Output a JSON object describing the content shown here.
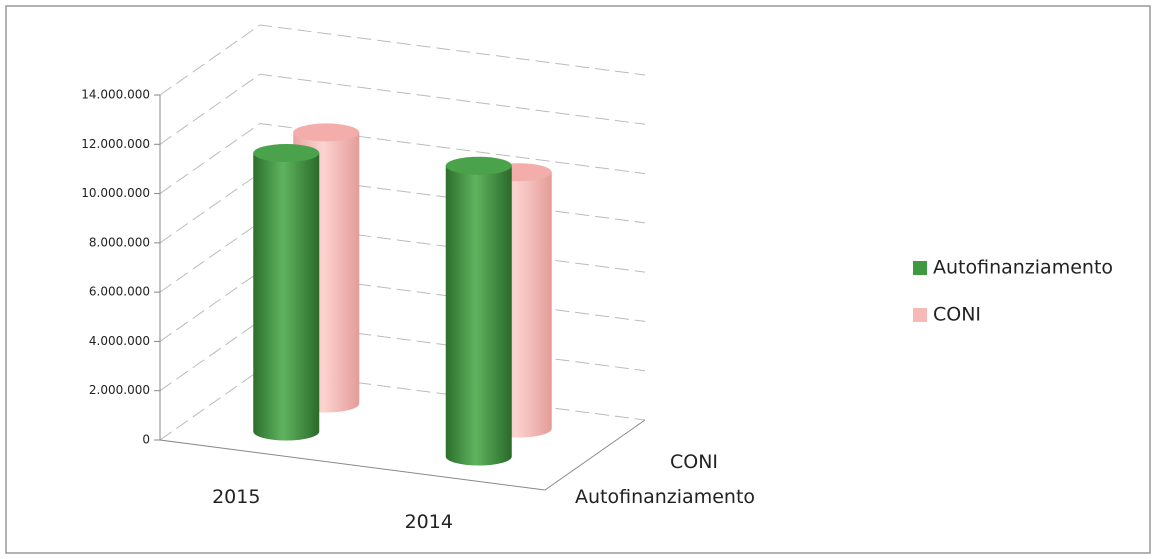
{
  "chart_data": {
    "type": "bar3d",
    "categories": [
      "2015",
      "2014"
    ],
    "series": [
      {
        "name": "Autofinanziamento",
        "color": "#3f9a3f",
        "values": [
          11300000,
          11800000
        ]
      },
      {
        "name": "CONI",
        "color": "#f6b9b6",
        "values": [
          11000000,
          10400000
        ]
      }
    ],
    "ylim": [
      0,
      14000000
    ],
    "yticks": [
      0,
      {
        "value": 2000000,
        "label": "2.000.000"
      },
      {
        "value": 4000000,
        "label": "4.000.000"
      },
      {
        "value": 6000000,
        "label": "6.000.000"
      },
      {
        "value": 8000000,
        "label": "8.000.000"
      },
      {
        "value": 10000000,
        "label": "10.000.000"
      },
      {
        "value": 12000000,
        "label": "12.000.000"
      },
      {
        "value": 14000000,
        "label": "14.000.000"
      }
    ],
    "grid": true,
    "legend": "right"
  }
}
